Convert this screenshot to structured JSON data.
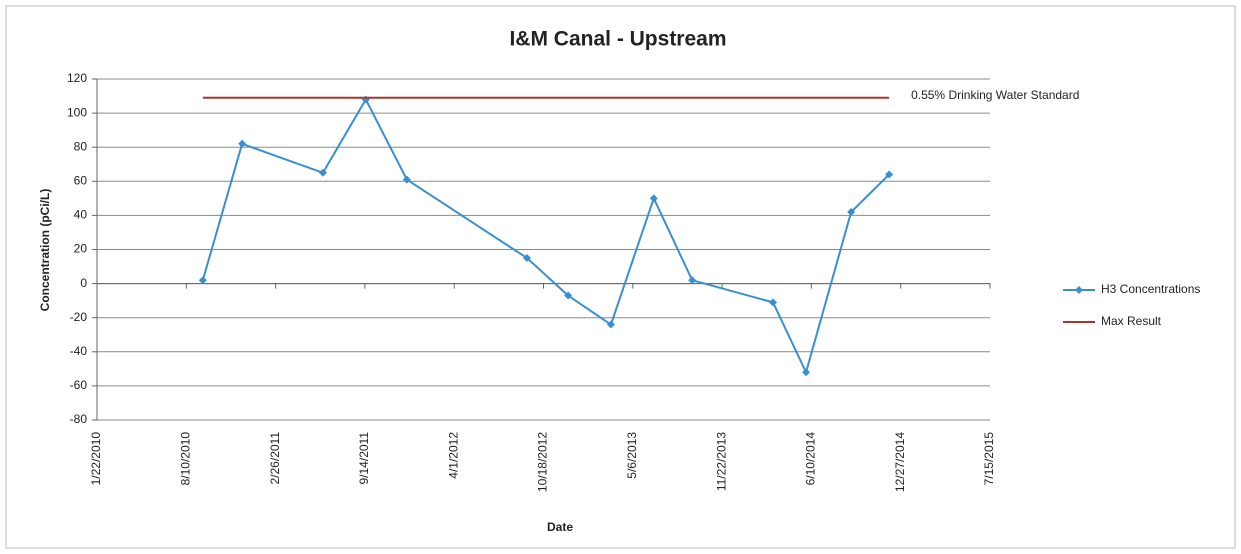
{
  "chart_data": {
    "type": "line",
    "title": "I&M Canal - Upstream",
    "y_label": "Concentration (pCi/L)",
    "x_label": "Date",
    "annotation": "0.55% Drinking Water Standard",
    "xlim": [
      "1/22/2010",
      "7/15/2015"
    ],
    "xticks": [
      "1/22/2010",
      "8/10/2010",
      "2/26/2011",
      "9/14/2011",
      "4/1/2012",
      "10/18/2012",
      "5/6/2013",
      "11/22/2013",
      "6/10/2014",
      "12/27/2014",
      "7/15/2015"
    ],
    "ylim": [
      -80,
      120
    ],
    "yticks": [
      -80,
      -60,
      -40,
      -20,
      0,
      20,
      40,
      60,
      80,
      100,
      120
    ],
    "grid": true,
    "legend": "right",
    "series": [
      {
        "name": "H3 Concentrations",
        "color": "#3a8fd0",
        "marker": "diamond",
        "x": [
          "9/16/2010",
          "12/13/2010",
          "6/12/2011",
          "9/16/2011",
          "12/17/2011",
          "9/11/2012",
          "12/12/2012",
          "3/18/2013",
          "6/22/2013",
          "9/16/2013",
          "3/16/2014",
          "5/29/2014",
          "9/7/2014",
          "12/1/2014"
        ],
        "values": [
          2,
          82,
          65,
          108,
          61,
          15,
          -7,
          -24,
          50,
          2,
          -11,
          -52,
          42,
          64
        ]
      },
      {
        "name": "Max Result",
        "color": "#a8352e",
        "marker": "none",
        "x": [
          "9/16/2010",
          "12/1/2014"
        ],
        "values": [
          109,
          109
        ]
      }
    ]
  }
}
